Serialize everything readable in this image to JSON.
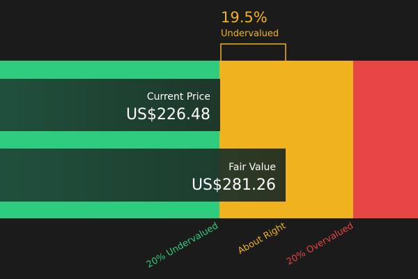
{
  "header": {
    "percent": "19.5%",
    "status": "Undervalued"
  },
  "current_price": {
    "label": "Current Price",
    "value": "US$226.48"
  },
  "fair_value": {
    "label": "Fair Value",
    "value": "US$281.26"
  },
  "zones": [
    "20% Undervalued",
    "About Right",
    "20% Overvalued"
  ]
}
